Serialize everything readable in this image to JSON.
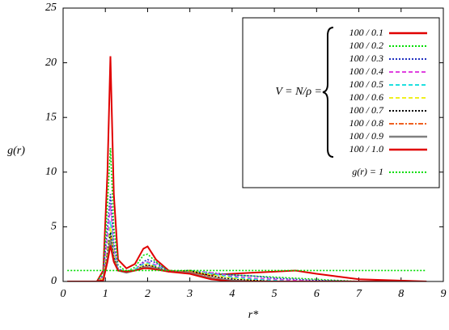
{
  "chart_data": {
    "type": "line",
    "x_label": "r*",
    "y_label": "g(r)",
    "legend_title": "V = N/ρ =",
    "xlim": [
      0,
      9
    ],
    "xticks": [
      0,
      1,
      2,
      3,
      4,
      5,
      6,
      7,
      8,
      9
    ],
    "ylim": [
      0,
      25
    ],
    "yticks": [
      0,
      5,
      10,
      15,
      20,
      25
    ],
    "x": [
      0.1,
      0.8,
      0.95,
      1.05,
      1.12,
      1.2,
      1.3,
      1.5,
      1.7,
      1.9,
      2.0,
      2.2,
      2.5,
      3.0,
      3.5,
      4.0,
      4.5,
      5.0,
      5.5,
      6.0,
      7.0,
      8.6
    ],
    "series": [
      {
        "name": "100 / 0.1",
        "color": "#e00000",
        "style": "solid",
        "values": [
          0,
          0,
          1,
          10,
          20.6,
          8,
          2,
          1.2,
          1.6,
          3,
          3.2,
          2,
          1,
          0.8,
          0.6,
          0.7,
          0.8,
          0.9,
          1.0,
          0.7,
          0.2,
          0
        ]
      },
      {
        "name": "100 / 0.2",
        "color": "#00dd00",
        "style": "dotted",
        "values": [
          0,
          0,
          0.8,
          7,
          12.2,
          5,
          1.5,
          0.9,
          1.3,
          2.4,
          2.5,
          1.8,
          0.9,
          0.9,
          0.7,
          0.6,
          0.5,
          0.4,
          0.3,
          0.2,
          0,
          0
        ]
      },
      {
        "name": "100 / 0.3",
        "color": "#2030c0",
        "style": "dotted",
        "values": [
          0,
          0,
          0.5,
          5,
          8,
          3.5,
          1.2,
          0.8,
          1.1,
          1.8,
          2,
          1.7,
          0.9,
          1,
          0.8,
          0.6,
          0.5,
          0.3,
          0.2,
          0.1,
          0,
          0
        ]
      },
      {
        "name": "100 / 0.4",
        "color": "#e040e0",
        "style": "dashed",
        "values": [
          0,
          0,
          0.4,
          4,
          7,
          3,
          1.1,
          0.8,
          1.1,
          1.7,
          1.8,
          1.5,
          0.9,
          1,
          0.8,
          0.5,
          0.3,
          0.2,
          0.1,
          0,
          0,
          0
        ]
      },
      {
        "name": "100 / 0.5",
        "color": "#20e0e0",
        "style": "dashed",
        "values": [
          0,
          0,
          0.3,
          3,
          5.5,
          2.6,
          1,
          0.8,
          1.1,
          1.6,
          1.7,
          1.4,
          0.9,
          1,
          0.7,
          0.4,
          0.2,
          0.1,
          0,
          0,
          0,
          0
        ]
      },
      {
        "name": "100 / 0.6",
        "color": "#f0f020",
        "style": "dashed",
        "values": [
          0,
          0,
          0.3,
          2.8,
          5,
          2.4,
          1,
          0.8,
          1,
          1.5,
          1.6,
          1.3,
          0.9,
          1,
          0.6,
          0.3,
          0.1,
          0,
          0,
          0,
          0,
          0
        ]
      },
      {
        "name": "100 / 0.7",
        "color": "#000000",
        "style": "dotted",
        "values": [
          0,
          0,
          0.2,
          2.5,
          4.5,
          2.2,
          1,
          0.8,
          1,
          1.4,
          1.5,
          1.3,
          0.9,
          1,
          0.5,
          0.2,
          0.1,
          0,
          0,
          0,
          0,
          0
        ]
      },
      {
        "name": "100 / 0.8",
        "color": "#f06020",
        "style": "dashdot",
        "values": [
          0,
          0,
          0.2,
          2.2,
          4,
          2,
          1,
          0.8,
          1,
          1.3,
          1.4,
          1.2,
          0.9,
          0.9,
          0.4,
          0.1,
          0,
          0,
          0,
          0,
          0,
          0
        ]
      },
      {
        "name": "100 / 0.9",
        "color": "#808080",
        "style": "solid",
        "values": [
          0,
          0,
          0.1,
          2,
          3.8,
          1.9,
          1,
          0.8,
          1,
          1.3,
          1.3,
          1.2,
          0.9,
          0.8,
          0.3,
          0.1,
          0,
          0,
          0,
          0,
          0,
          0
        ]
      },
      {
        "name": "100 / 1.0",
        "color": "#e00000",
        "style": "solid",
        "values": [
          0,
          0,
          0.1,
          1.8,
          3.3,
          1.8,
          1,
          0.9,
          1,
          1.2,
          1.2,
          1.1,
          0.9,
          0.7,
          0.2,
          0,
          0,
          0,
          0,
          0,
          0,
          0
        ]
      },
      {
        "name": "g(r) = 1",
        "color": "#00dd00",
        "style": "dotted",
        "x": [
          0.1,
          8.6
        ],
        "values": [
          1,
          1
        ]
      }
    ]
  }
}
